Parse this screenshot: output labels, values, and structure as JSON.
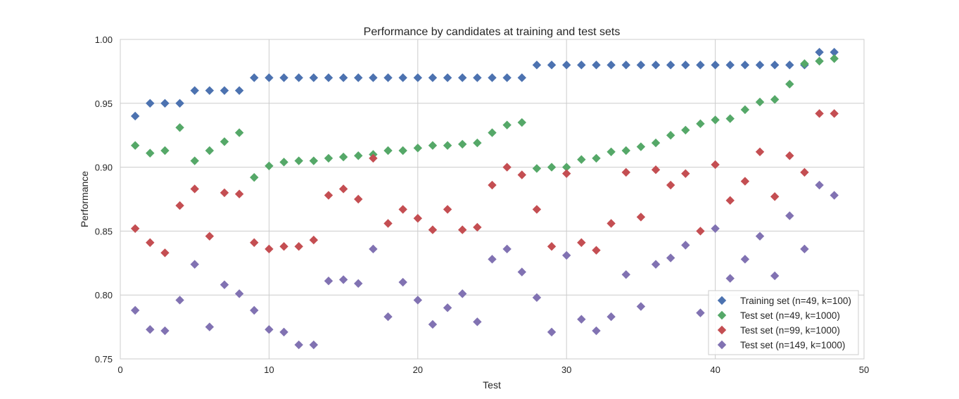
{
  "chart_data": {
    "type": "scatter",
    "title": "Performance by candidates at training and test sets",
    "xlabel": "Test",
    "ylabel": "Performance",
    "xlim": [
      0,
      50
    ],
    "ylim": [
      0.75,
      1.0
    ],
    "xticks": [
      "0",
      "10",
      "20",
      "30",
      "40",
      "50"
    ],
    "yticks": [
      "0.75",
      "0.80",
      "0.85",
      "0.90",
      "0.95",
      "1.00"
    ],
    "grid": true,
    "legend_position": "bottom-right",
    "marker": "diamond",
    "series": [
      {
        "name": "Training set (n=49, k=100)",
        "color": "#4c72b0",
        "x": [
          1,
          2,
          3,
          4,
          5,
          6,
          7,
          8,
          9,
          10,
          11,
          12,
          13,
          14,
          15,
          16,
          17,
          18,
          19,
          20,
          21,
          22,
          23,
          24,
          25,
          26,
          27,
          28,
          29,
          30,
          31,
          32,
          33,
          34,
          35,
          36,
          37,
          38,
          39,
          40,
          41,
          42,
          43,
          44,
          45,
          46,
          47,
          48
        ],
        "y": [
          0.94,
          0.95,
          0.95,
          0.95,
          0.96,
          0.96,
          0.96,
          0.96,
          0.97,
          0.97,
          0.97,
          0.97,
          0.97,
          0.97,
          0.97,
          0.97,
          0.97,
          0.97,
          0.97,
          0.97,
          0.97,
          0.97,
          0.97,
          0.97,
          0.97,
          0.97,
          0.97,
          0.98,
          0.98,
          0.98,
          0.98,
          0.98,
          0.98,
          0.98,
          0.98,
          0.98,
          0.98,
          0.98,
          0.98,
          0.98,
          0.98,
          0.98,
          0.98,
          0.98,
          0.98,
          0.98,
          0.99,
          0.99
        ]
      },
      {
        "name": "Test set (n=49, k=1000)",
        "color": "#55a868",
        "x": [
          1,
          2,
          3,
          4,
          5,
          6,
          7,
          8,
          9,
          10,
          11,
          12,
          13,
          14,
          15,
          16,
          17,
          18,
          19,
          20,
          21,
          22,
          23,
          24,
          25,
          26,
          27,
          28,
          29,
          30,
          31,
          32,
          33,
          34,
          35,
          36,
          37,
          38,
          39,
          40,
          41,
          42,
          43,
          44,
          45,
          46,
          47,
          48
        ],
        "y": [
          0.917,
          0.911,
          0.913,
          0.931,
          0.905,
          0.913,
          0.92,
          0.927,
          0.892,
          0.901,
          0.904,
          0.905,
          0.905,
          0.907,
          0.908,
          0.909,
          0.91,
          0.913,
          0.913,
          0.915,
          0.917,
          0.917,
          0.918,
          0.919,
          0.927,
          0.933,
          0.935,
          0.899,
          0.9,
          0.9,
          0.906,
          0.907,
          0.912,
          0.913,
          0.916,
          0.919,
          0.925,
          0.929,
          0.934,
          0.937,
          0.938,
          0.945,
          0.951,
          0.953,
          0.965,
          0.981,
          0.983,
          0.985
        ]
      },
      {
        "name": "Test set (n=99, k=1000)",
        "color": "#c44e52",
        "x": [
          1,
          2,
          3,
          4,
          5,
          6,
          7,
          8,
          9,
          10,
          11,
          12,
          13,
          14,
          15,
          16,
          17,
          18,
          19,
          20,
          21,
          22,
          23,
          24,
          25,
          26,
          27,
          28,
          29,
          30,
          31,
          32,
          33,
          34,
          35,
          36,
          37,
          38,
          39,
          40,
          41,
          42,
          43,
          44,
          45,
          46,
          47,
          48
        ],
        "y": [
          0.852,
          0.841,
          0.833,
          0.87,
          0.883,
          0.846,
          0.88,
          0.879,
          0.841,
          0.836,
          0.838,
          0.838,
          0.843,
          0.878,
          0.883,
          0.875,
          0.907,
          0.856,
          0.867,
          0.86,
          0.851,
          0.867,
          0.851,
          0.853,
          0.886,
          0.9,
          0.894,
          0.867,
          0.838,
          0.895,
          0.841,
          0.835,
          0.856,
          0.896,
          0.861,
          0.898,
          0.886,
          0.895,
          0.85,
          0.902,
          0.874,
          0.889,
          0.912,
          0.877,
          0.909,
          0.896,
          0.942,
          0.942
        ]
      },
      {
        "name": "Test set (n=149, k=1000)",
        "color": "#8172b2",
        "x": [
          1,
          2,
          3,
          4,
          5,
          6,
          7,
          8,
          9,
          10,
          11,
          12,
          13,
          14,
          15,
          16,
          17,
          18,
          19,
          20,
          21,
          22,
          23,
          24,
          25,
          26,
          27,
          28,
          29,
          30,
          31,
          32,
          33,
          34,
          35,
          36,
          37,
          38,
          39,
          40,
          41,
          42,
          43,
          44,
          45,
          46,
          47,
          48
        ],
        "y": [
          0.788,
          0.773,
          0.772,
          0.796,
          0.824,
          0.775,
          0.808,
          0.801,
          0.788,
          0.773,
          0.771,
          0.761,
          0.761,
          0.811,
          0.812,
          0.809,
          0.836,
          0.783,
          0.81,
          0.796,
          0.777,
          0.79,
          0.801,
          0.779,
          0.828,
          0.836,
          0.818,
          0.798,
          0.771,
          0.831,
          0.781,
          0.772,
          0.783,
          0.816,
          0.791,
          0.824,
          0.829,
          0.839,
          0.786,
          0.852,
          0.813,
          0.828,
          0.846,
          0.815,
          0.862,
          0.836,
          0.886,
          0.878
        ]
      }
    ]
  }
}
